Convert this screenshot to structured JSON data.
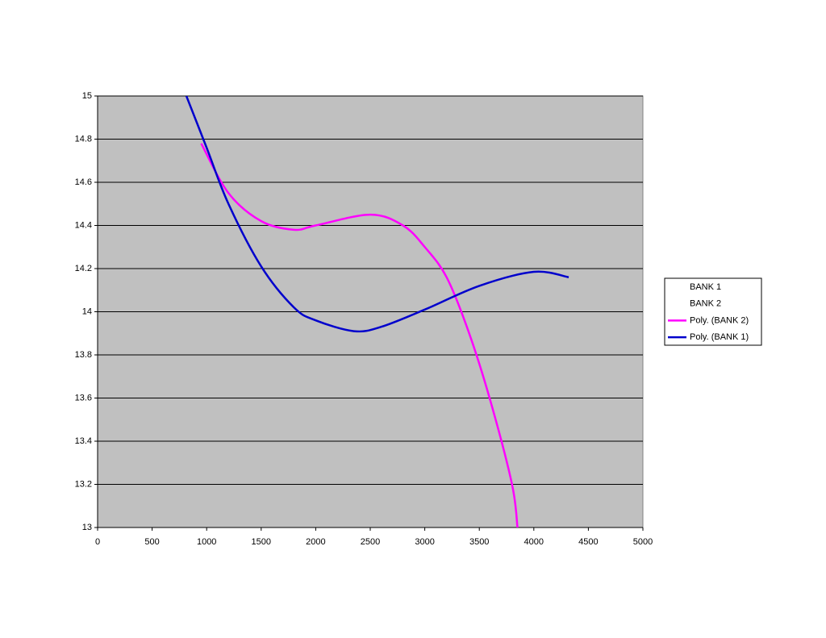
{
  "chart_data": {
    "type": "line",
    "series": [
      {
        "name": "BANK 1",
        "x": [],
        "values": []
      },
      {
        "name": "BANK 2",
        "x": [],
        "values": []
      },
      {
        "name": "Poly. (BANK 2)",
        "color": "#ff00ff",
        "x": [
          950,
          1200,
          1500,
          1800,
          2000,
          2500,
          2800,
          3000,
          3200,
          3400,
          3600,
          3800,
          3850
        ],
        "values": [
          14.78,
          14.55,
          14.42,
          14.38,
          14.4,
          14.45,
          14.4,
          14.3,
          14.16,
          13.91,
          13.59,
          13.2,
          13.0
        ]
      },
      {
        "name": "Poly. (BANK 1)",
        "color": "#0000cc",
        "x": [
          814,
          1000,
          1200,
          1500,
          1800,
          2000,
          2350,
          2600,
          3000,
          3500,
          4000,
          4320
        ],
        "values": [
          15.0,
          14.76,
          14.5,
          14.21,
          14.02,
          13.96,
          13.91,
          13.93,
          14.01,
          14.12,
          14.185,
          14.16
        ]
      }
    ],
    "xlim": [
      0,
      5000
    ],
    "xticks": [
      0,
      500,
      1000,
      1500,
      2000,
      2500,
      3000,
      3500,
      4000,
      4500,
      5000
    ],
    "ylim": [
      13,
      15
    ],
    "yticks": [
      13,
      13.2,
      13.4,
      13.6,
      13.8,
      14,
      14.2,
      14.4,
      14.6,
      14.8,
      15
    ],
    "grid": true,
    "legend": "right",
    "plot_background": "#c0c0c0"
  }
}
